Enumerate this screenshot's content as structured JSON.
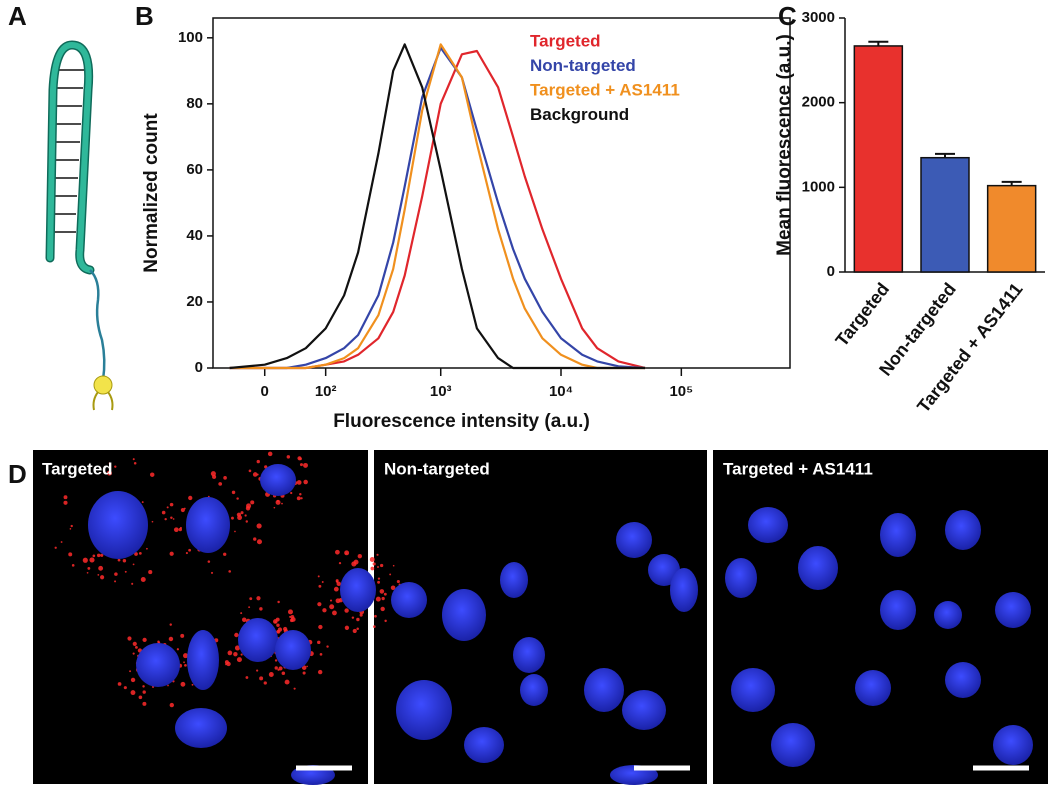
{
  "panel_labels": [
    "A",
    "B",
    "C",
    "D"
  ],
  "image_panels": [
    {
      "label": "Targeted"
    },
    {
      "label": "Non-targeted"
    },
    {
      "label": "Targeted + AS1411"
    }
  ],
  "chart_data": [
    {
      "type": "line",
      "xscale": "biexponential",
      "x_label": "Fluorescence intensity (a.u.)",
      "y_label": "Normalized count",
      "x": [
        -50,
        0,
        30,
        60,
        100,
        150,
        200,
        300,
        400,
        500,
        700,
        1000,
        1500,
        2000,
        3000,
        4000,
        5000,
        7000,
        10000,
        15000,
        20000,
        30000,
        50000
      ],
      "series": [
        {
          "name": "Targeted",
          "color": "#e0262c",
          "values": [
            0,
            0,
            0,
            0,
            1,
            2,
            4,
            9,
            17,
            28,
            52,
            80,
            95,
            96,
            85,
            70,
            58,
            42,
            27,
            12,
            6,
            2,
            0
          ]
        },
        {
          "name": "Non-targeted",
          "color": "#3445a8",
          "values": [
            0,
            0,
            0,
            1,
            3,
            6,
            10,
            22,
            38,
            55,
            82,
            97,
            88,
            72,
            50,
            36,
            27,
            17,
            9,
            4,
            2,
            0.5,
            0
          ]
        },
        {
          "name": "Targeted + AS1411",
          "color": "#f0901e",
          "values": [
            0,
            0,
            0,
            0,
            1,
            3,
            6,
            16,
            30,
            48,
            78,
            98,
            88,
            68,
            42,
            27,
            18,
            9,
            4,
            1,
            0,
            0,
            0
          ]
        },
        {
          "name": "Background",
          "color": "#111111",
          "values": [
            0,
            1,
            3,
            6,
            12,
            22,
            35,
            65,
            90,
            98,
            85,
            60,
            30,
            12,
            3,
            0,
            0,
            0,
            0,
            0,
            0,
            0,
            0
          ]
        }
      ],
      "xlim": [
        -80,
        800000
      ],
      "xticks": [
        0,
        {
          "value": 100,
          "label": "10²"
        },
        {
          "value": 1000,
          "label": "10³"
        },
        {
          "value": 10000,
          "label": "10⁴"
        },
        {
          "value": 100000,
          "label": "10⁵"
        }
      ],
      "ylim": [
        0,
        106
      ],
      "yticks": [
        0,
        20,
        40,
        60,
        80,
        100
      ]
    },
    {
      "type": "bar",
      "y_label": "Mean fluorescence (a.u.)",
      "categories": [
        "Targeted",
        "Non-targeted",
        "Targeted + AS1411"
      ],
      "values": [
        2670,
        1350,
        1020
      ],
      "errors": [
        50,
        45,
        45
      ],
      "colors": [
        "#e8312d",
        "#3c5bb5",
        "#f08a2c"
      ],
      "ylim": [
        0,
        3000
      ],
      "yticks": [
        0,
        1000,
        2000,
        3000
      ]
    }
  ]
}
